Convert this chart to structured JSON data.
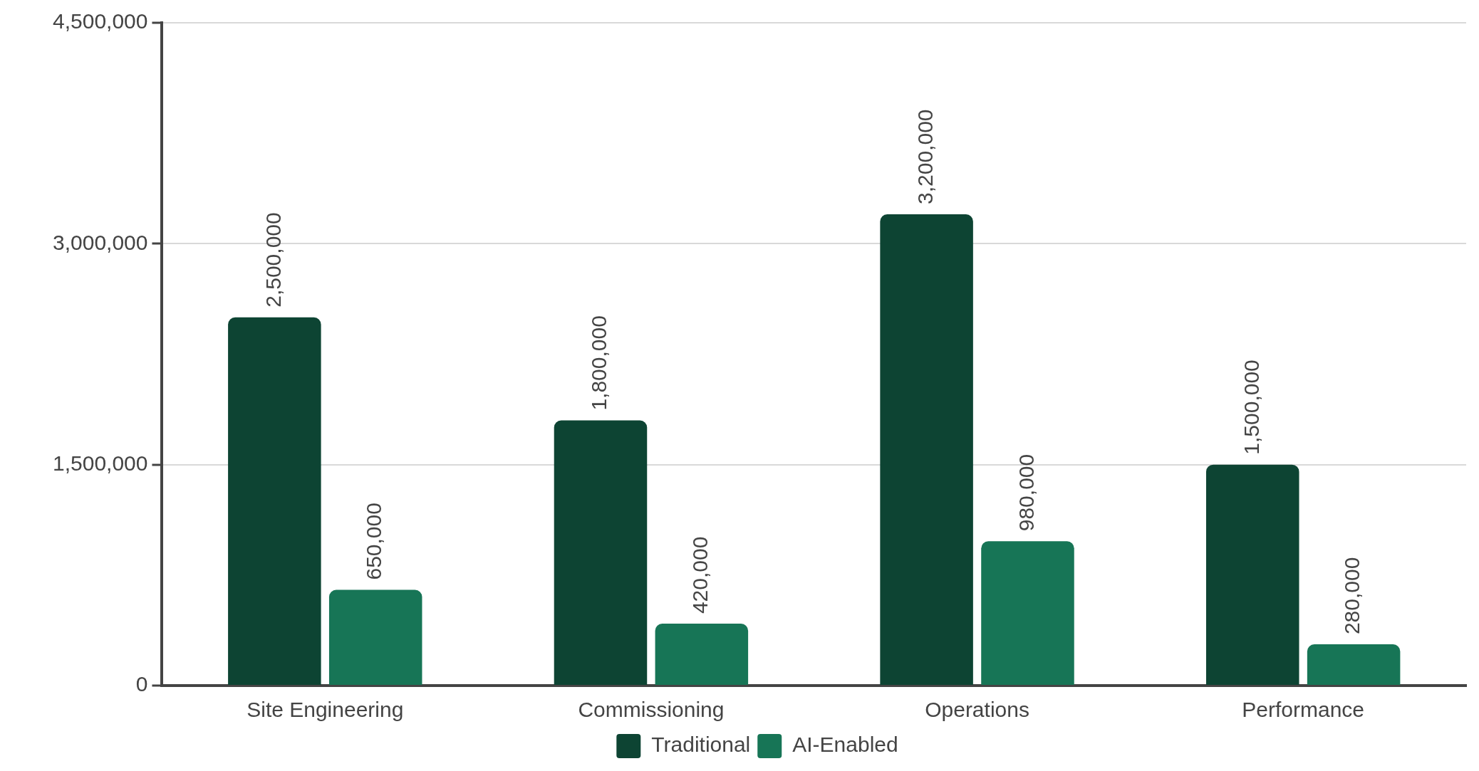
{
  "chart_data": {
    "type": "bar",
    "categories": [
      "Site Engineering",
      "Commissioning",
      "Operations",
      "Performance"
    ],
    "series": [
      {
        "name": "Traditional",
        "color": "#0d4433",
        "values": [
          2500000,
          1800000,
          3200000,
          1500000
        ],
        "value_labels": [
          "2,500,000",
          "1,800,000",
          "3,200,000",
          "1,500,000"
        ]
      },
      {
        "name": "AI-Enabled",
        "color": "#177556",
        "values": [
          650000,
          420000,
          980000,
          280000
        ],
        "value_labels": [
          "650,000",
          "420,000",
          "980,000",
          "280,000"
        ]
      }
    ],
    "ylim": [
      0,
      4500000
    ],
    "yticks": [
      {
        "value": 0,
        "label": "0"
      },
      {
        "value": 1500000,
        "label": "1,500,000"
      },
      {
        "value": 3000000,
        "label": "3,000,000"
      },
      {
        "value": 4500000,
        "label": "4,500,000"
      }
    ],
    "grid": "y",
    "legend": "bottom"
  }
}
